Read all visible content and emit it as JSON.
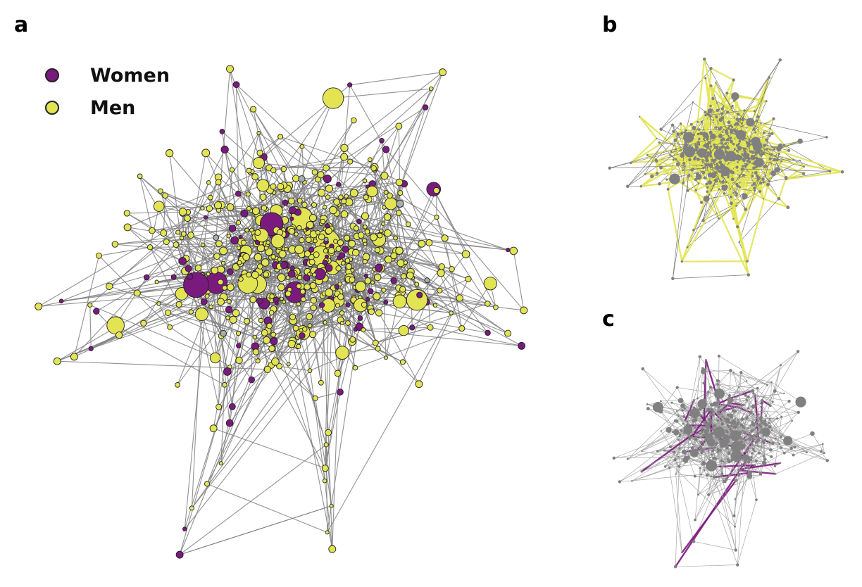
{
  "panels": {
    "a": "a",
    "b": "b",
    "c": "c"
  },
  "legend": [
    {
      "label": "Women",
      "color": "#7b1a7e"
    },
    {
      "label": "Men",
      "color": "#e2e454"
    }
  ],
  "colors": {
    "women": "#7b1a7e",
    "men": "#e2e454",
    "unknown": "#a6aeae",
    "edge": "#7f7f7f",
    "highlight_men": "#e2e454",
    "highlight_women": "#7b1a7e"
  }
}
